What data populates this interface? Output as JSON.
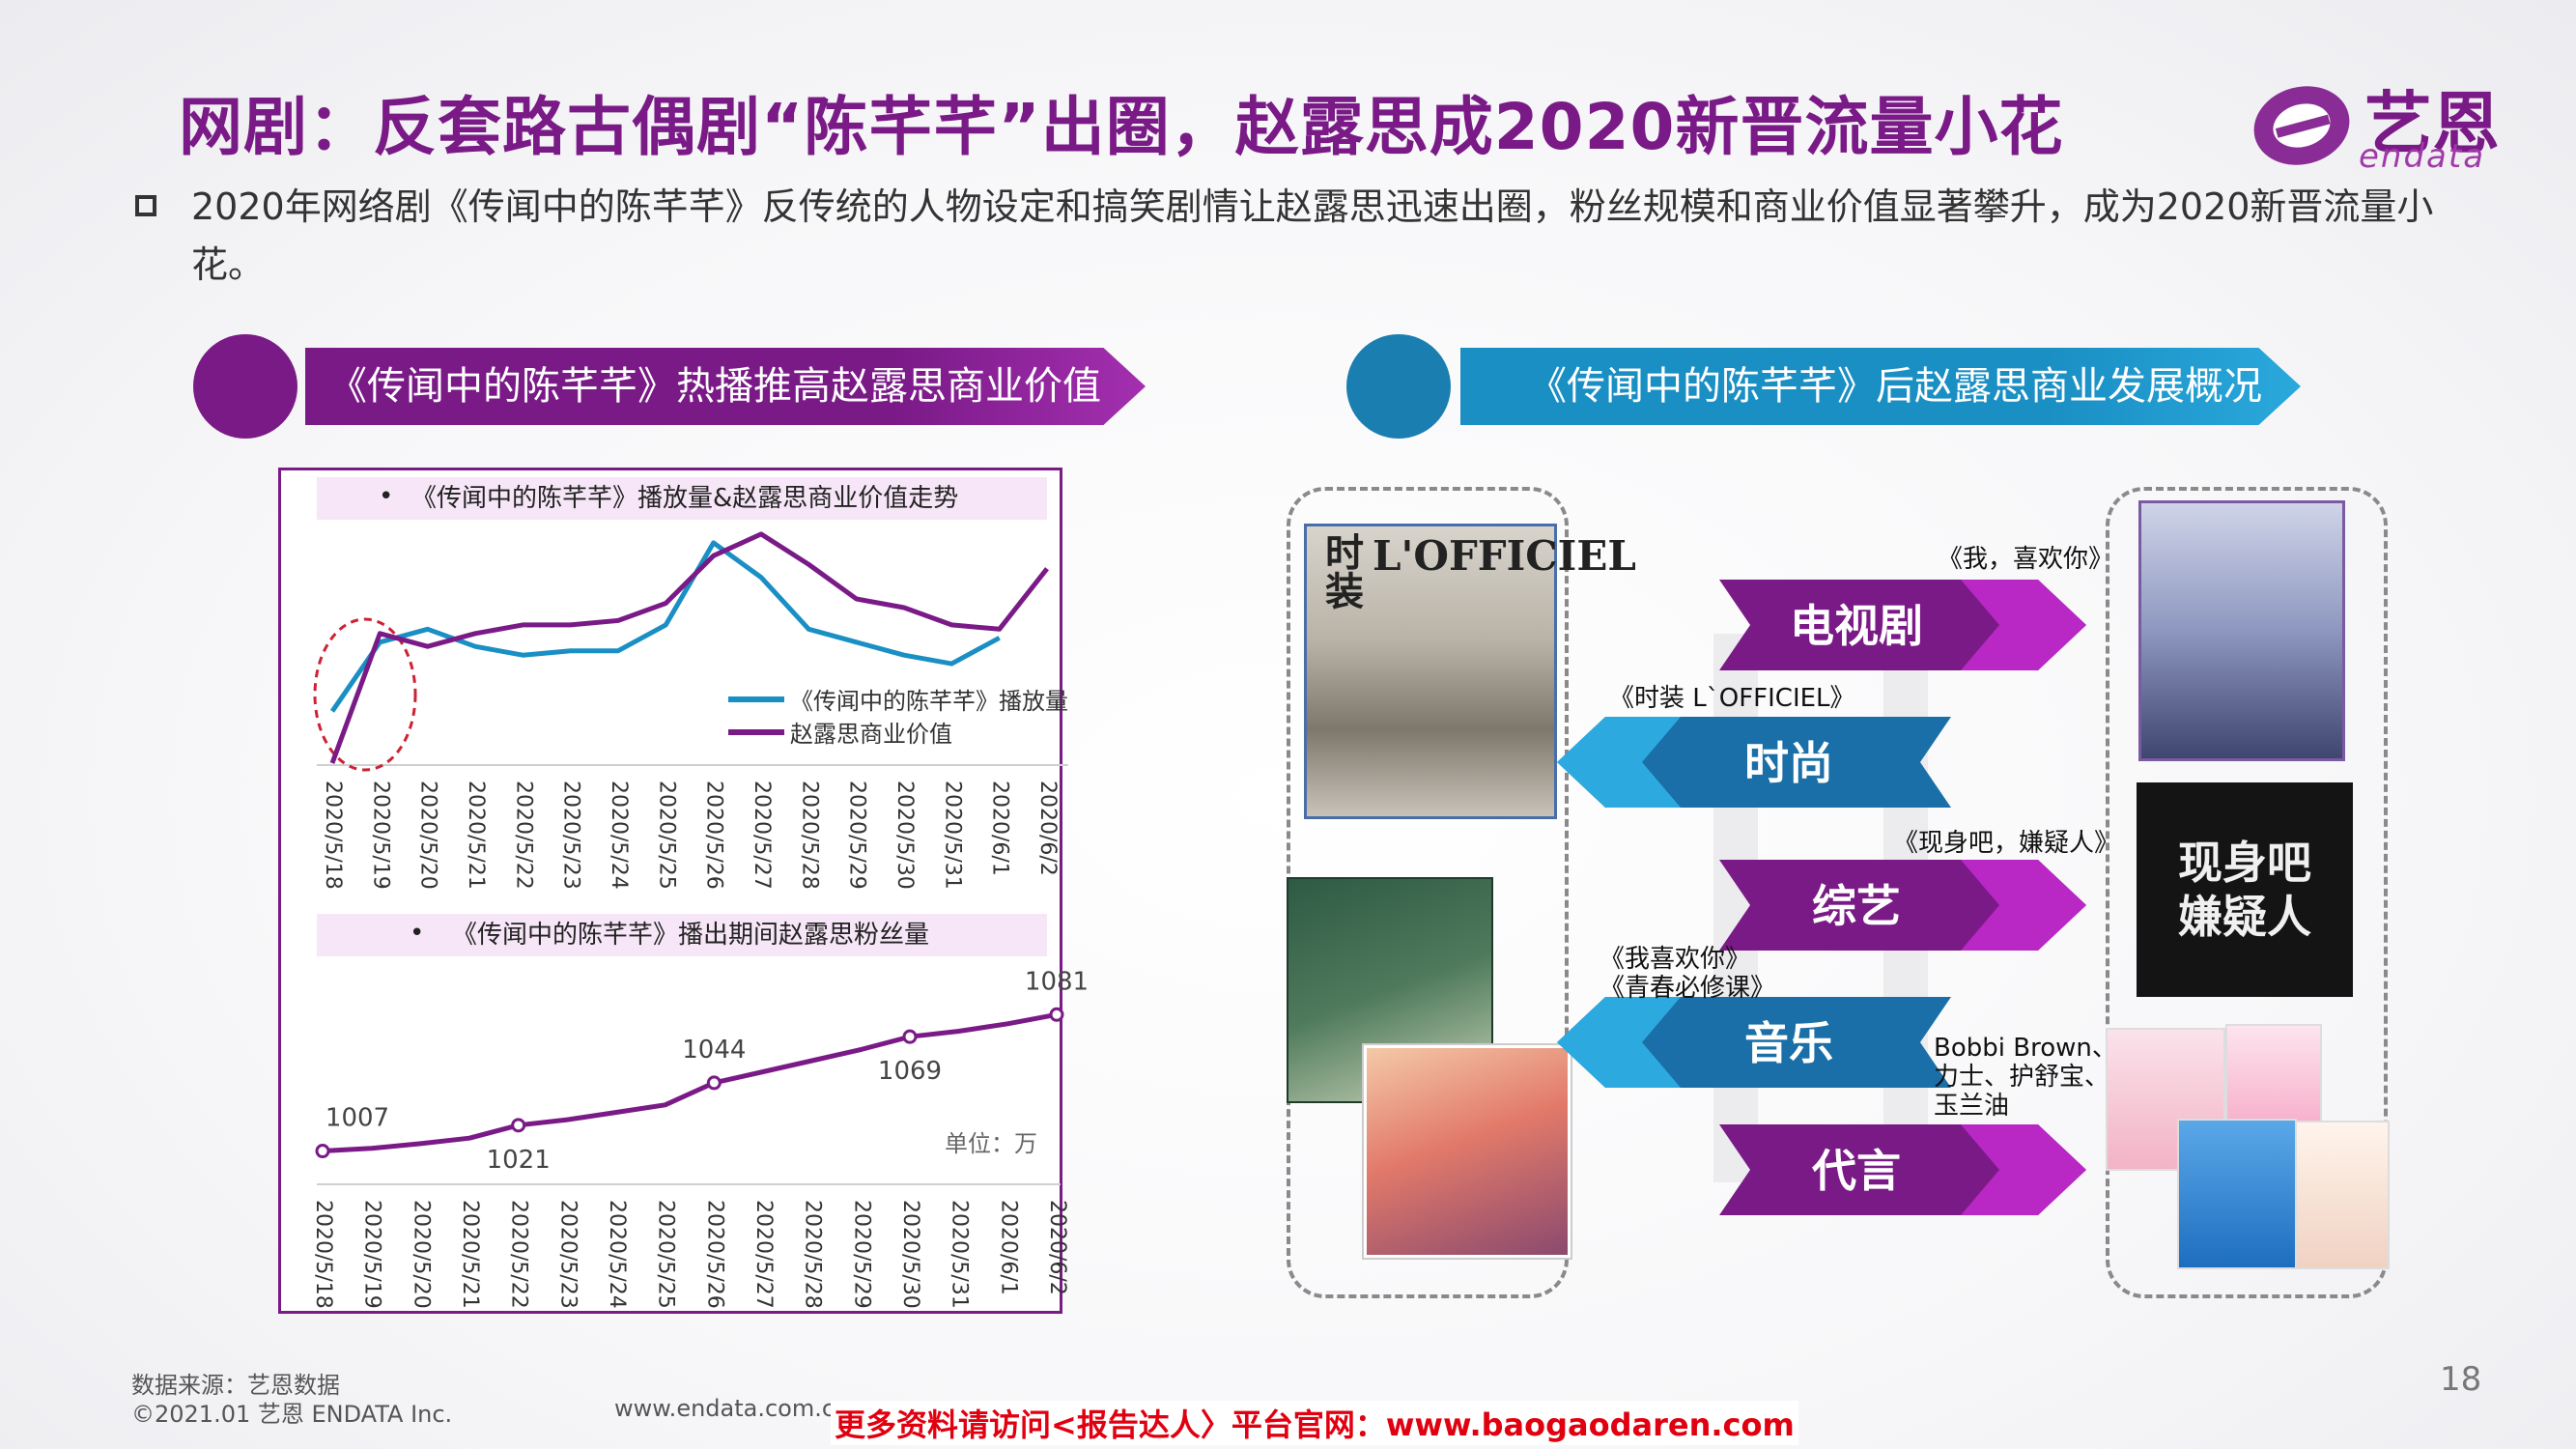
{
  "header": {
    "title": "网剧：反套路古偶剧“陈芊芊”出圈，赵露思成2020新晋流量小花",
    "logo_cn": "艺恩",
    "logo_en": "endata"
  },
  "lead_text": "2020年网络剧《传闻中的陈芊芊》反传统的人物设定和搞笑剧情让赵露思迅速出圈，粉丝规模和商业价值显著攀升，成为2020新晋流量小花。",
  "left_section": {
    "banner": "《传闻中的陈芊芊》热播推高赵露思商业价值"
  },
  "right_section": {
    "banner": "《传闻中的陈芊芊》后赵露思商业发展概况"
  },
  "colors": {
    "purple": "#7a1a87",
    "blue": "#1a8fc4",
    "accent_magenta": "#c42ad0"
  },
  "chart_data": [
    {
      "type": "line",
      "title": "《传闻中的陈芊芊》播放量&赵露思商业价值走势",
      "categories": [
        "2020/5/18",
        "2020/5/19",
        "2020/5/20",
        "2020/5/21",
        "2020/5/22",
        "2020/5/23",
        "2020/5/24",
        "2020/5/25",
        "2020/5/26",
        "2020/5/27",
        "2020/5/28",
        "2020/5/29",
        "2020/5/30",
        "2020/5/31",
        "2020/6/1",
        "2020/6/2"
      ],
      "series": [
        {
          "name": "《传闻中的陈芊芊》播放量",
          "color": "#1a8fc4",
          "values": [
            12,
            28,
            31,
            27,
            25,
            26,
            26,
            32,
            51,
            43,
            31,
            28,
            25,
            23,
            29,
            null
          ]
        },
        {
          "name": "赵露思商业价值",
          "color": "#7a1a87",
          "values": [
            0,
            30,
            27,
            30,
            32,
            32,
            33,
            37,
            48,
            53,
            46,
            38,
            36,
            32,
            31,
            45
          ]
        }
      ],
      "ylim": [
        0,
        55
      ],
      "grid": false,
      "legend": "right"
    },
    {
      "type": "line",
      "title": "《传闻中的陈芊芊》播出期间赵露思粉丝量",
      "unit_label": "单位：万",
      "categories": [
        "2020/5/18",
        "2020/5/19",
        "2020/5/20",
        "2020/5/21",
        "2020/5/22",
        "2020/5/23",
        "2020/5/24",
        "2020/5/25",
        "2020/5/26",
        "2020/5/27",
        "2020/5/28",
        "2020/5/29",
        "2020/5/30",
        "2020/5/31",
        "2020/6/1",
        "2020/6/2"
      ],
      "series": [
        {
          "color": "#7a1a87",
          "values": [
            1007,
            1008.5,
            1011,
            1014,
            1021,
            1024,
            1028,
            1032,
            1044,
            1050,
            1056,
            1062,
            1069,
            1072,
            1076,
            1081
          ]
        }
      ],
      "data_labels": [
        {
          "index": 0,
          "text": "1007"
        },
        {
          "index": 4,
          "text": "1021"
        },
        {
          "index": 8,
          "text": "1044"
        },
        {
          "index": 12,
          "text": "1069"
        },
        {
          "index": 15,
          "text": "1081"
        }
      ],
      "ylim": [
        990,
        1100
      ],
      "grid": false
    }
  ],
  "business": {
    "categories": [
      {
        "label": "电视剧",
        "tag": "《我，喜欢你》"
      },
      {
        "label": "时尚",
        "tag": "《时装 L`OFFICIEL》"
      },
      {
        "label": "综艺",
        "tag": "《现身吧，嫌疑人》"
      },
      {
        "label": "音乐",
        "tag1": "《我喜欢你》",
        "tag2": "《青春必修课》"
      },
      {
        "label": "代言",
        "tag1": "Bobbi Brown、",
        "tag2": "力士、护舒宝、",
        "tag3": "玉兰油"
      }
    ],
    "images": {
      "magazine": "L'OFFICIEL",
      "magazine_cn": "时装",
      "variety": "现身吧 嫌疑人"
    }
  },
  "footer": {
    "source": "数据来源：艺恩数据",
    "copyright": "©2021.01 艺恩 ENDATA Inc.",
    "site": "www.endata.com.cn",
    "promo": "更多资料请访问<报告达人〉平台官网：www.baogaodaren.com",
    "page_number": "18"
  }
}
